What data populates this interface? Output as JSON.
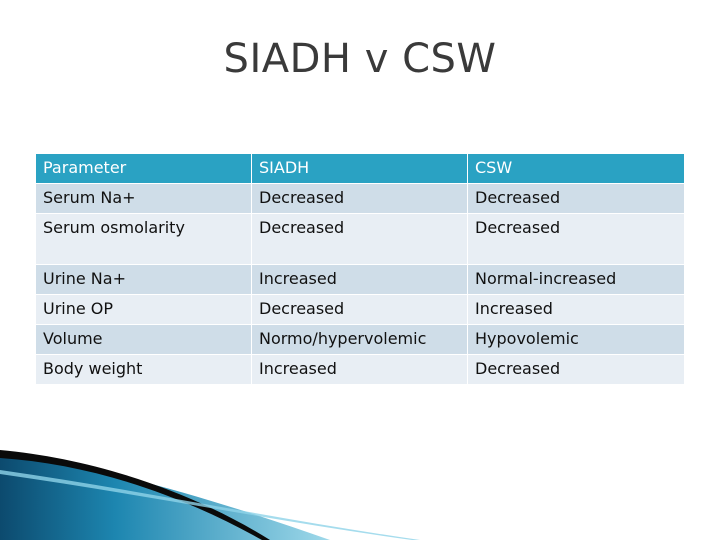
{
  "slide": {
    "title": "SIADH v CSW"
  },
  "table": {
    "headers": [
      "Parameter",
      "SIADH",
      "CSW"
    ],
    "rows": [
      [
        "Serum Na+",
        "Decreased",
        "Decreased"
      ],
      [
        "Serum osmolarity",
        "Decreased",
        "Decreased"
      ],
      [
        "Urine Na+",
        "Increased",
        "Normal-increased"
      ],
      [
        "Urine OP",
        "Decreased",
        "Increased"
      ],
      [
        "Volume",
        "Normo/hypervolemic",
        "Hypovolemic"
      ],
      [
        "Body weight",
        "Increased",
        "Decreased"
      ]
    ]
  },
  "colors": {
    "header_bg": "#2aa2c3",
    "row_odd": "#cfdde8",
    "row_even": "#e8eef4",
    "title": "#3a3a3a",
    "accent_dark": "#0c4a6e",
    "accent_light": "#38b6d8"
  }
}
